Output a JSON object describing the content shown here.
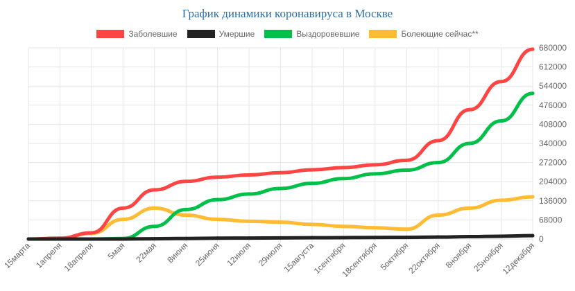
{
  "chart_data": {
    "type": "line",
    "title": "График динамики коронавируса в Москве",
    "categories": [
      "15марта",
      "1апреля",
      "18апреля",
      "5мая",
      "22мая",
      "8июня",
      "25июня",
      "12июля",
      "29июля",
      "15августа",
      "1сентября",
      "18сентября",
      "5октября",
      "22октября",
      "8ноября",
      "25ноября",
      "12декабря"
    ],
    "ylim": [
      0,
      680000
    ],
    "y_ticks": [
      "680000",
      "612000",
      "544000",
      "476000",
      "408000",
      "340000",
      "272000",
      "204000",
      "136000",
      "68000",
      "0"
    ],
    "y_axis_side": "right",
    "grid": true,
    "legend_position": "top",
    "series": [
      {
        "name": "Заболевшие",
        "color": "#ff4444",
        "values": [
          0,
          3000,
          22000,
          110000,
          175000,
          205000,
          220000,
          228000,
          236000,
          246000,
          254000,
          264000,
          280000,
          350000,
          460000,
          560000,
          675000
        ]
      },
      {
        "name": "Умершие",
        "color": "#222222",
        "values": [
          0,
          0,
          0,
          0,
          1000,
          2000,
          3000,
          3500,
          4000,
          4500,
          5000,
          5500,
          6000,
          7000,
          8500,
          10000,
          12000
        ]
      },
      {
        "name": "Выздоровевшие",
        "color": "#00c04a",
        "values": [
          0,
          0,
          0,
          2000,
          45000,
          105000,
          140000,
          160000,
          180000,
          198000,
          215000,
          232000,
          245000,
          272000,
          340000,
          420000,
          518000
        ]
      },
      {
        "name": "Болеющие сейчас**",
        "color": "#ffbb33",
        "values": [
          0,
          2500,
          20000,
          70000,
          110000,
          85000,
          70000,
          63000,
          60000,
          52000,
          45000,
          40000,
          35000,
          85000,
          110000,
          138000,
          150000
        ]
      }
    ]
  }
}
